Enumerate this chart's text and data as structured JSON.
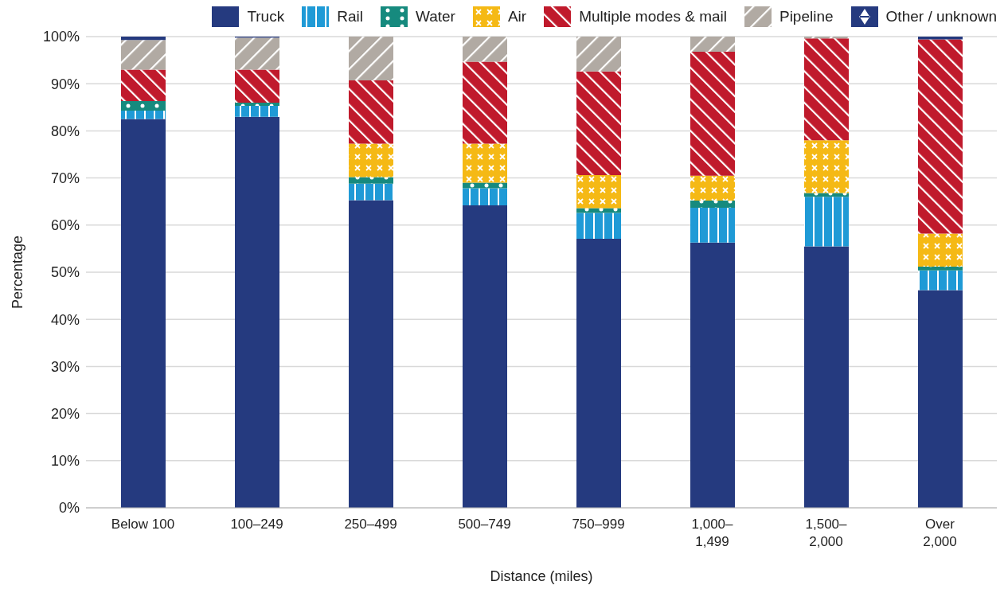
{
  "chart_data": {
    "type": "bar",
    "stacked": true,
    "xlabel": "Distance (miles)",
    "ylabel": "Percentage",
    "categories": [
      "Below 100",
      "100–249",
      "250–499",
      "500–749",
      "750–999",
      "1,000–1,499",
      "1,500–2,000",
      "Over 2,000"
    ],
    "series": [
      {
        "name": "Truck",
        "color": "#253a7f",
        "values": [
          82.5,
          83,
          65.3,
          64.2,
          57.1,
          56.3,
          55.5,
          46.2
        ]
      },
      {
        "name": "Rail",
        "color": "#1f9ad6",
        "values": [
          1.8,
          2.3,
          3.5,
          3.6,
          5.5,
          7.4,
          10.5,
          4.2
        ]
      },
      {
        "name": "Water",
        "color": "#168a7e",
        "values": [
          2,
          0.7,
          1.4,
          1.2,
          1,
          1.5,
          0.8,
          0.8
        ]
      },
      {
        "name": "Air",
        "color": "#f5b915",
        "values": [
          0,
          0,
          7.1,
          8.3,
          7,
          5.3,
          11.2,
          7
        ]
      },
      {
        "name": "Multiple modes & mail",
        "color": "#c01a2c",
        "values": [
          6.7,
          7,
          13.4,
          17.4,
          22,
          26.3,
          21.6,
          41.2
        ]
      },
      {
        "name": "Pipeline",
        "color": "#b1aaa3",
        "values": [
          6.3,
          6.8,
          9.3,
          5.3,
          7.4,
          3.2,
          0.4,
          0
        ]
      },
      {
        "name": "Other / unknown",
        "color": "#253a7f",
        "values": [
          0.7,
          0.2,
          0,
          0,
          0,
          0,
          0,
          0.6
        ]
      }
    ],
    "ylim": [
      0,
      100
    ],
    "yticks": [
      {
        "value": 0,
        "label": "0%"
      },
      {
        "value": 10,
        "label": "10%"
      },
      {
        "value": 20,
        "label": "20%"
      },
      {
        "value": 30,
        "label": "30%"
      },
      {
        "value": 40,
        "label": "40%"
      },
      {
        "value": 50,
        "label": "50%"
      },
      {
        "value": 60,
        "label": "60%"
      },
      {
        "value": 70,
        "label": "70%"
      },
      {
        "value": 80,
        "label": "80%"
      },
      {
        "value": 90,
        "label": "90%"
      },
      {
        "value": 100,
        "label": "100%"
      }
    ],
    "grid": "y",
    "legend": "top"
  }
}
